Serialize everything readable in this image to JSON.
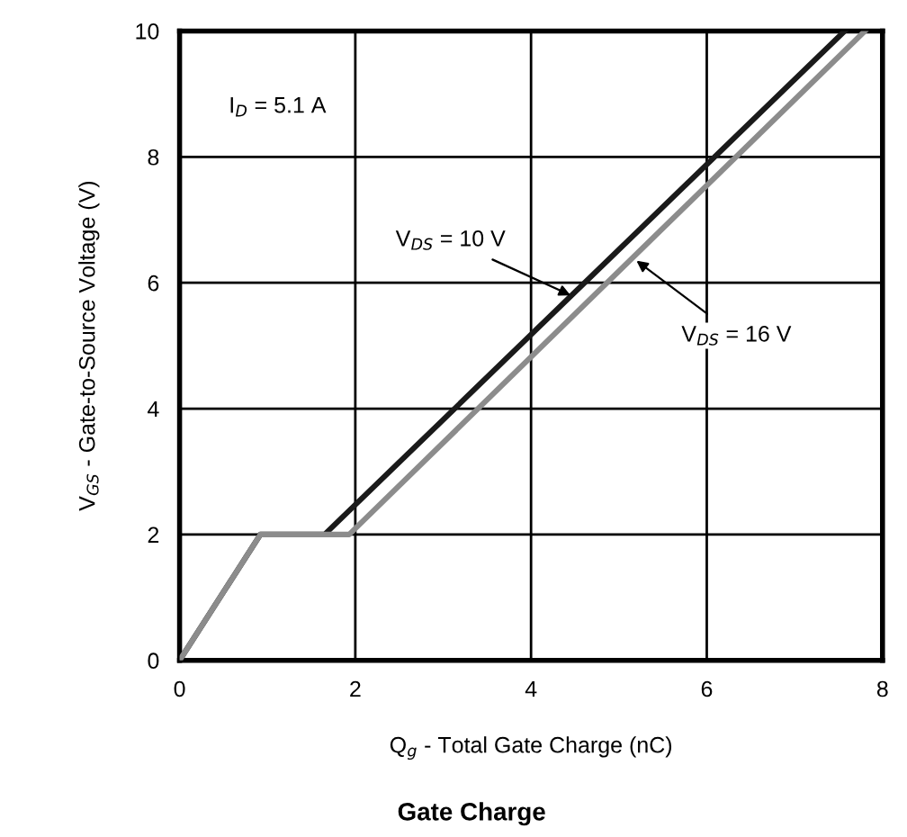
{
  "chart_data": {
    "type": "line",
    "title": "Gate Charge",
    "xlabel": "Q$_{g}$ - Total Gate Charge (nC)",
    "ylabel": "V$_{GS}$ - Gate-to-Source Voltage (V)",
    "series": [
      {
        "color": "#1a1a1a",
        "x": [
          0,
          0.92,
          1.65,
          7.57
        ],
        "values": [
          0,
          2,
          2,
          10
        ]
      },
      {
        "color": "#8c8c8c",
        "x": [
          0,
          0.92,
          1.93,
          7.8
        ],
        "values": [
          0,
          2,
          2,
          10
        ]
      }
    ],
    "annotations": [
      "I$_{D}$ = 5.1 A",
      {
        "text": "V$_{DS}$ = 10 V",
        "x": 4.45,
        "y": 5.8
      },
      {
        "text": "V$_{DS}$ = 16 V",
        "x": 5.2,
        "y": 6.35
      }
    ],
    "xlim": [
      0,
      8
    ],
    "xticks": [
      0,
      2,
      4,
      6,
      8
    ],
    "ylim": [
      0,
      10
    ],
    "yticks": [
      0,
      2,
      4,
      6,
      8,
      10
    ],
    "grid": true,
    "marker": "none",
    "line_style": "solid"
  }
}
